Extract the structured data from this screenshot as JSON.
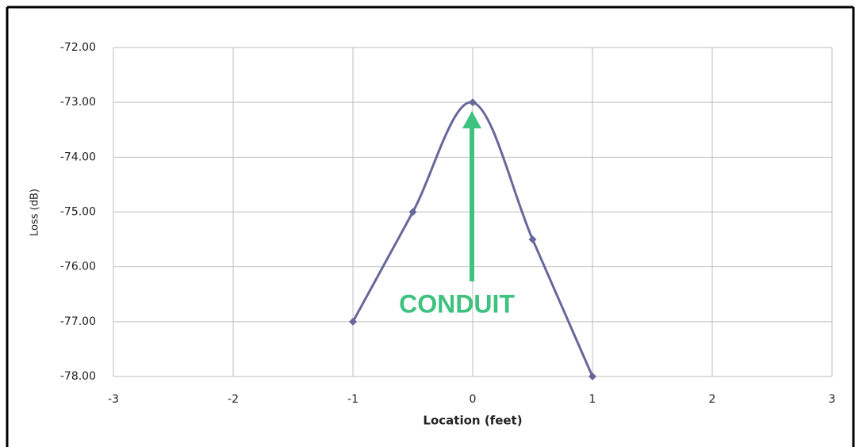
{
  "chart_data": {
    "type": "line",
    "x": [
      -1,
      -0.5,
      0,
      0.5,
      1
    ],
    "series": [
      {
        "name": "Loss",
        "color": "#67679a",
        "values": [
          -77,
          -75,
          -73,
          -75.5,
          -78
        ]
      }
    ],
    "xlabel": "Location (feet)",
    "ylabel": "Loss (dB)",
    "xlim": [
      -3,
      3
    ],
    "xticks": [
      -3,
      -2,
      -1,
      0,
      1,
      2,
      3
    ],
    "ylim": [
      -78,
      -72
    ],
    "yticks": [
      {
        "value": -72,
        "label": "-72.00"
      },
      {
        "value": -73,
        "label": "-73.00"
      },
      {
        "value": -74,
        "label": "-74.00"
      },
      {
        "value": -75,
        "label": "-75.00"
      },
      {
        "value": -76,
        "label": "-76.00"
      },
      {
        "value": -77,
        "label": "-77.00"
      },
      {
        "value": -78,
        "label": "-78.00"
      }
    ],
    "grid": true,
    "smooth": true,
    "annotation": "CONDUIT",
    "annotation_color": "#3fc27f"
  }
}
